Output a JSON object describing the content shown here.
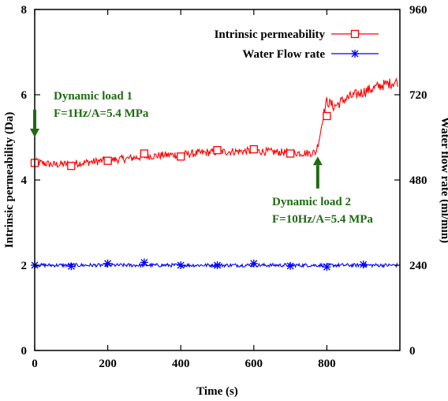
{
  "chart_data": {
    "type": "line",
    "title": "",
    "xlabel": "Time (s)",
    "ylabel_left": "Intrinsic permeability (Da)",
    "ylabel_right": "Water flow rate (ml/min)",
    "xlim": [
      0,
      1000
    ],
    "ylim_left": [
      0,
      8
    ],
    "ylim_right": [
      0,
      960
    ],
    "x_ticks": [
      0,
      200,
      400,
      600,
      800
    ],
    "y_left_ticks": [
      0,
      2,
      4,
      6,
      8
    ],
    "y_right_ticks": [
      0,
      240,
      480,
      720,
      960
    ],
    "grid": false,
    "legend_position": "top-right",
    "series": [
      {
        "name": "Intrinsic permeability",
        "axis": "left",
        "color": "#ff0000",
        "marker": "open-square",
        "x": [
          0,
          50,
          100,
          150,
          200,
          250,
          300,
          350,
          400,
          450,
          500,
          550,
          600,
          650,
          700,
          750,
          770,
          780,
          790,
          800,
          820,
          850,
          900,
          950,
          1000
        ],
        "y": [
          4.42,
          4.36,
          4.38,
          4.42,
          4.46,
          4.5,
          4.55,
          4.58,
          4.6,
          4.63,
          4.66,
          4.67,
          4.68,
          4.66,
          4.64,
          4.63,
          4.65,
          5.0,
          5.5,
          5.85,
          5.72,
          5.9,
          6.07,
          6.22,
          6.32
        ],
        "markers_x": [
          0,
          100,
          200,
          300,
          400,
          500,
          600,
          700,
          800
        ],
        "markers_y": [
          4.4,
          4.33,
          4.45,
          4.62,
          4.55,
          4.7,
          4.72,
          4.62,
          5.5
        ]
      },
      {
        "name": "Water Flow rate",
        "axis": "right",
        "color": "#0000ff",
        "marker": "asterisk",
        "x": [
          0,
          100,
          200,
          300,
          400,
          500,
          600,
          700,
          800,
          900,
          1000
        ],
        "y": [
          240,
          240,
          240,
          240,
          240,
          240,
          240,
          240,
          240,
          240,
          240
        ],
        "markers_x": [
          0,
          100,
          200,
          300,
          400,
          500,
          600,
          700,
          800,
          900
        ],
        "markers_y": [
          240,
          237,
          245,
          248,
          240,
          240,
          245,
          238,
          235,
          242
        ]
      }
    ],
    "annotations": [
      {
        "line1": "Dynamic load 1",
        "line2": "F=1Hz/A=5.4 MPa",
        "arrow_x": 0,
        "arrow_from_y": 5.65,
        "arrow_to_y": 5.0,
        "direction": "down"
      },
      {
        "line1": "Dynamic load 2",
        "line2": "F=10Hz/A=5.4 MPa",
        "arrow_x": 775,
        "arrow_from_y": 3.8,
        "arrow_to_y": 4.55,
        "direction": "up"
      }
    ],
    "colors": {
      "annotation": "#1f6b12",
      "axes": "#000000"
    }
  }
}
